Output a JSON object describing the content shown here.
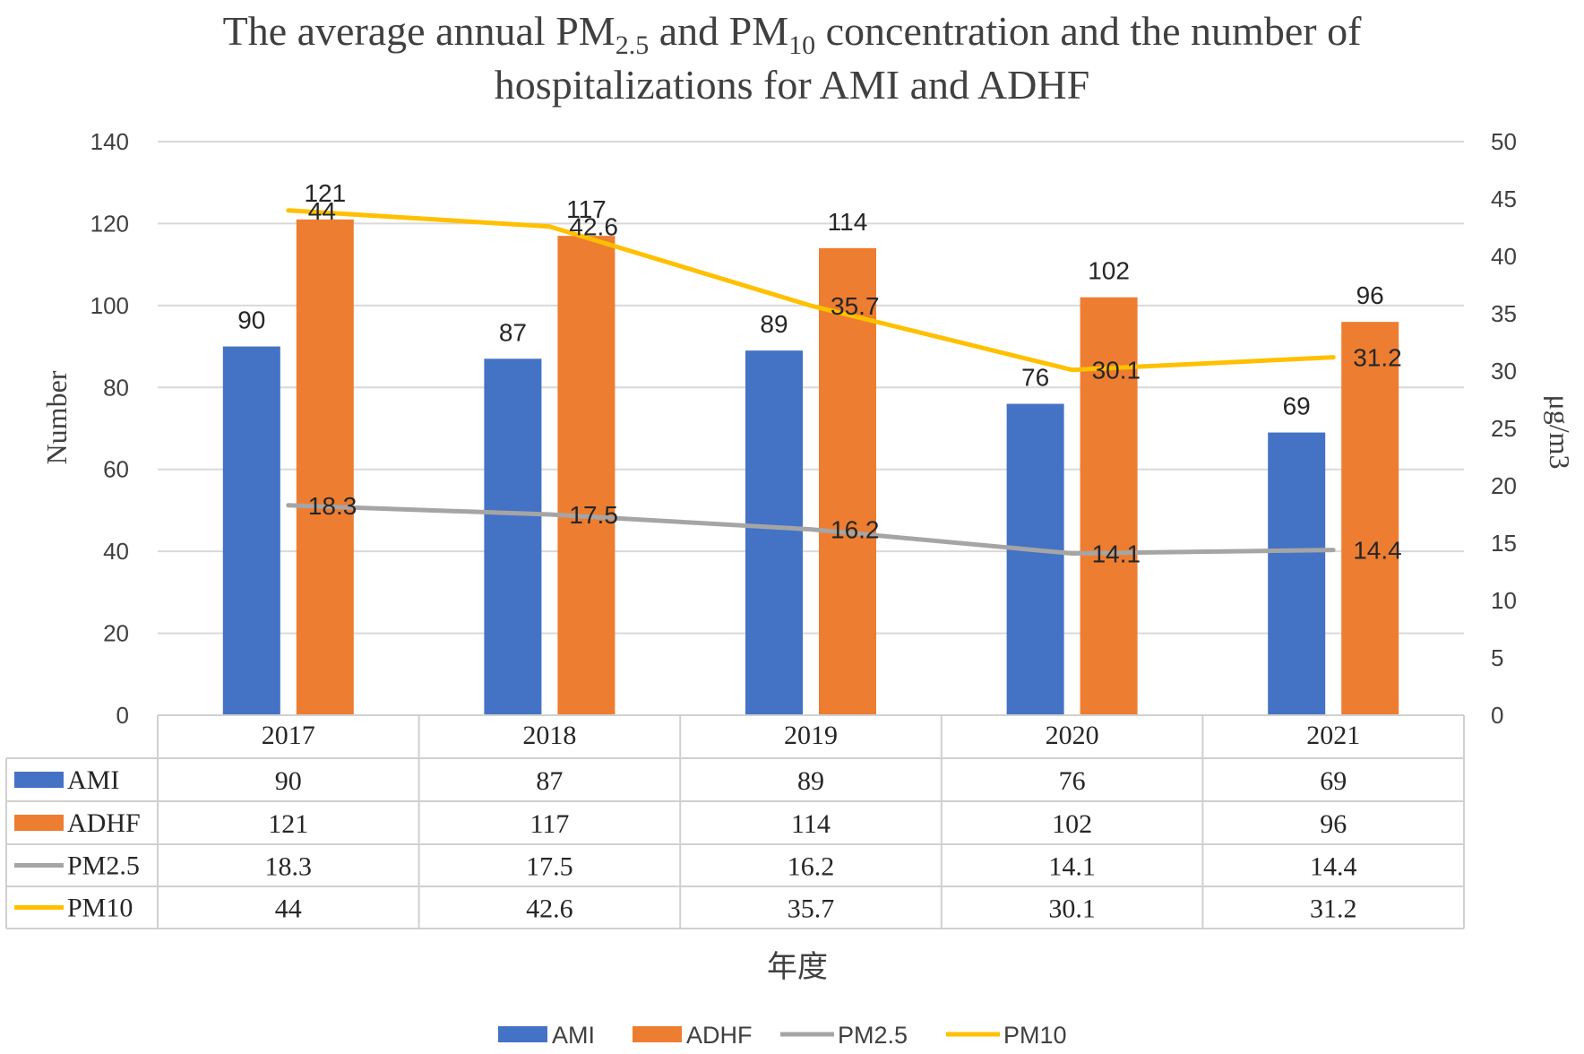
{
  "chart_data": {
    "type": "bar",
    "title_parts": [
      "The average annual PM",
      "2.5",
      " and PM",
      "10",
      " concentration and the number of"
    ],
    "title_line2": "hospitalizations for AMI and ADHF",
    "categories": [
      "2017",
      "2018",
      "2019",
      "2020",
      "2021"
    ],
    "xlabel": "年度",
    "ylabel": "Number",
    "ylabel_right": "μg/m3",
    "ylim": [
      0,
      140
    ],
    "yticks": [
      "0",
      "20",
      "40",
      "60",
      "80",
      "100",
      "120",
      "140"
    ],
    "ylim_right": [
      0,
      50
    ],
    "yticks_right": [
      "0",
      "5",
      "10",
      "15",
      "20",
      "25",
      "30",
      "35",
      "40",
      "45",
      "50"
    ],
    "gridlines": true,
    "legend_position": "bottom",
    "series": [
      {
        "name": "AMI",
        "kind": "bar",
        "axis": "left",
        "color": "#4472C4",
        "values": [
          90,
          87,
          89,
          76,
          69
        ],
        "labels": [
          "90",
          "87",
          "89",
          "76",
          "69"
        ]
      },
      {
        "name": "ADHF",
        "kind": "bar",
        "axis": "left",
        "color": "#ED7D31",
        "values": [
          121,
          117,
          114,
          102,
          96
        ],
        "labels": [
          "121",
          "117",
          "114",
          "102",
          "96"
        ]
      },
      {
        "name": "PM2.5",
        "kind": "line",
        "axis": "right",
        "color": "#A5A5A5",
        "values": [
          18.3,
          17.5,
          16.2,
          14.1,
          14.4
        ],
        "labels": [
          "18.3",
          "17.5",
          "16.2",
          "14.1",
          "14.4"
        ]
      },
      {
        "name": "PM10",
        "kind": "line",
        "axis": "right",
        "color": "#FFC000",
        "values": [
          44,
          42.6,
          35.7,
          30.1,
          31.2
        ],
        "labels": [
          "44",
          "42.6",
          "35.7",
          "30.1",
          "31.2"
        ]
      }
    ]
  }
}
